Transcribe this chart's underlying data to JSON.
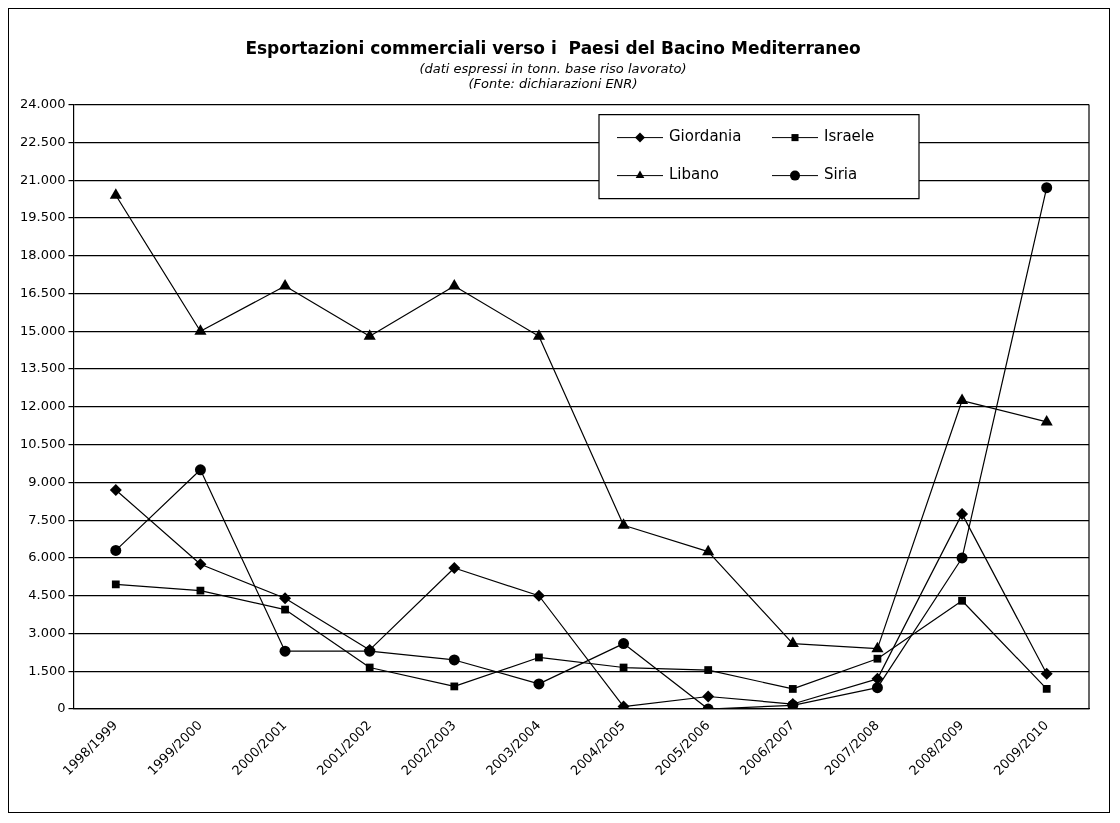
{
  "chart_data": {
    "type": "line",
    "title": "Esportazioni commerciali verso i  Paesi del Bacino Mediterraneo",
    "subtitle": "(dati espressi in tonn. base riso lavorato)",
    "annotations": [
      "(Fonte: dichiarazioni ENR)"
    ],
    "categories": [
      "1998/1999",
      "1999/2000",
      "2000/2001",
      "2001/2002",
      "2002/2003",
      "2003/2004",
      "2004/2005",
      "2005/2006",
      "2006/2007",
      "2007/2008",
      "2008/2009",
      "2009/2010"
    ],
    "series": [
      {
        "name": "Giordania",
        "color": "#000000",
        "marker": "diamond",
        "values": [
          8700,
          5750,
          4400,
          2350,
          5600,
          4500,
          100,
          500,
          200,
          1200,
          7750,
          1400
        ]
      },
      {
        "name": "Israele",
        "color": "#000000",
        "marker": "square",
        "values": [
          4950,
          4700,
          3950,
          1650,
          900,
          2050,
          1650,
          1550,
          800,
          2000,
          4300,
          800
        ]
      },
      {
        "name": "Libano",
        "color": "#000000",
        "marker": "triangle",
        "values": [
          20400,
          15000,
          16800,
          14800,
          16800,
          14800,
          7300,
          6250,
          2600,
          2400,
          12250,
          11400
        ]
      },
      {
        "name": "Siria",
        "color": "#000000",
        "marker": "circle",
        "values": [
          6300,
          9500,
          2300,
          2300,
          1950,
          1000,
          2600,
          0,
          150,
          850,
          6000,
          20700
        ]
      }
    ],
    "ylim": [
      0,
      24000
    ],
    "yticks": [
      0,
      {
        "value": 1500,
        "label": "1.500"
      },
      {
        "value": 3000,
        "label": "3.000"
      },
      {
        "value": 4500,
        "label": "4.500"
      },
      {
        "value": 6000,
        "label": "6.000"
      },
      {
        "value": 7500,
        "label": "7.500"
      },
      {
        "value": 9000,
        "label": "9.000"
      },
      {
        "value": 10500,
        "label": "10.500"
      },
      {
        "value": 12000,
        "label": "12.000"
      },
      {
        "value": 13500,
        "label": "13.500"
      },
      {
        "value": 15000,
        "label": "15.000"
      },
      {
        "value": 16500,
        "label": "16.500"
      },
      {
        "value": 18000,
        "label": "18.000"
      },
      {
        "value": 19500,
        "label": "19.500"
      },
      {
        "value": 21000,
        "label": "21.000"
      },
      {
        "value": 22500,
        "label": "22.500"
      },
      {
        "value": 24000,
        "label": "24.000"
      }
    ],
    "grid": "y",
    "legend": "top right",
    "line_style": "solid"
  }
}
